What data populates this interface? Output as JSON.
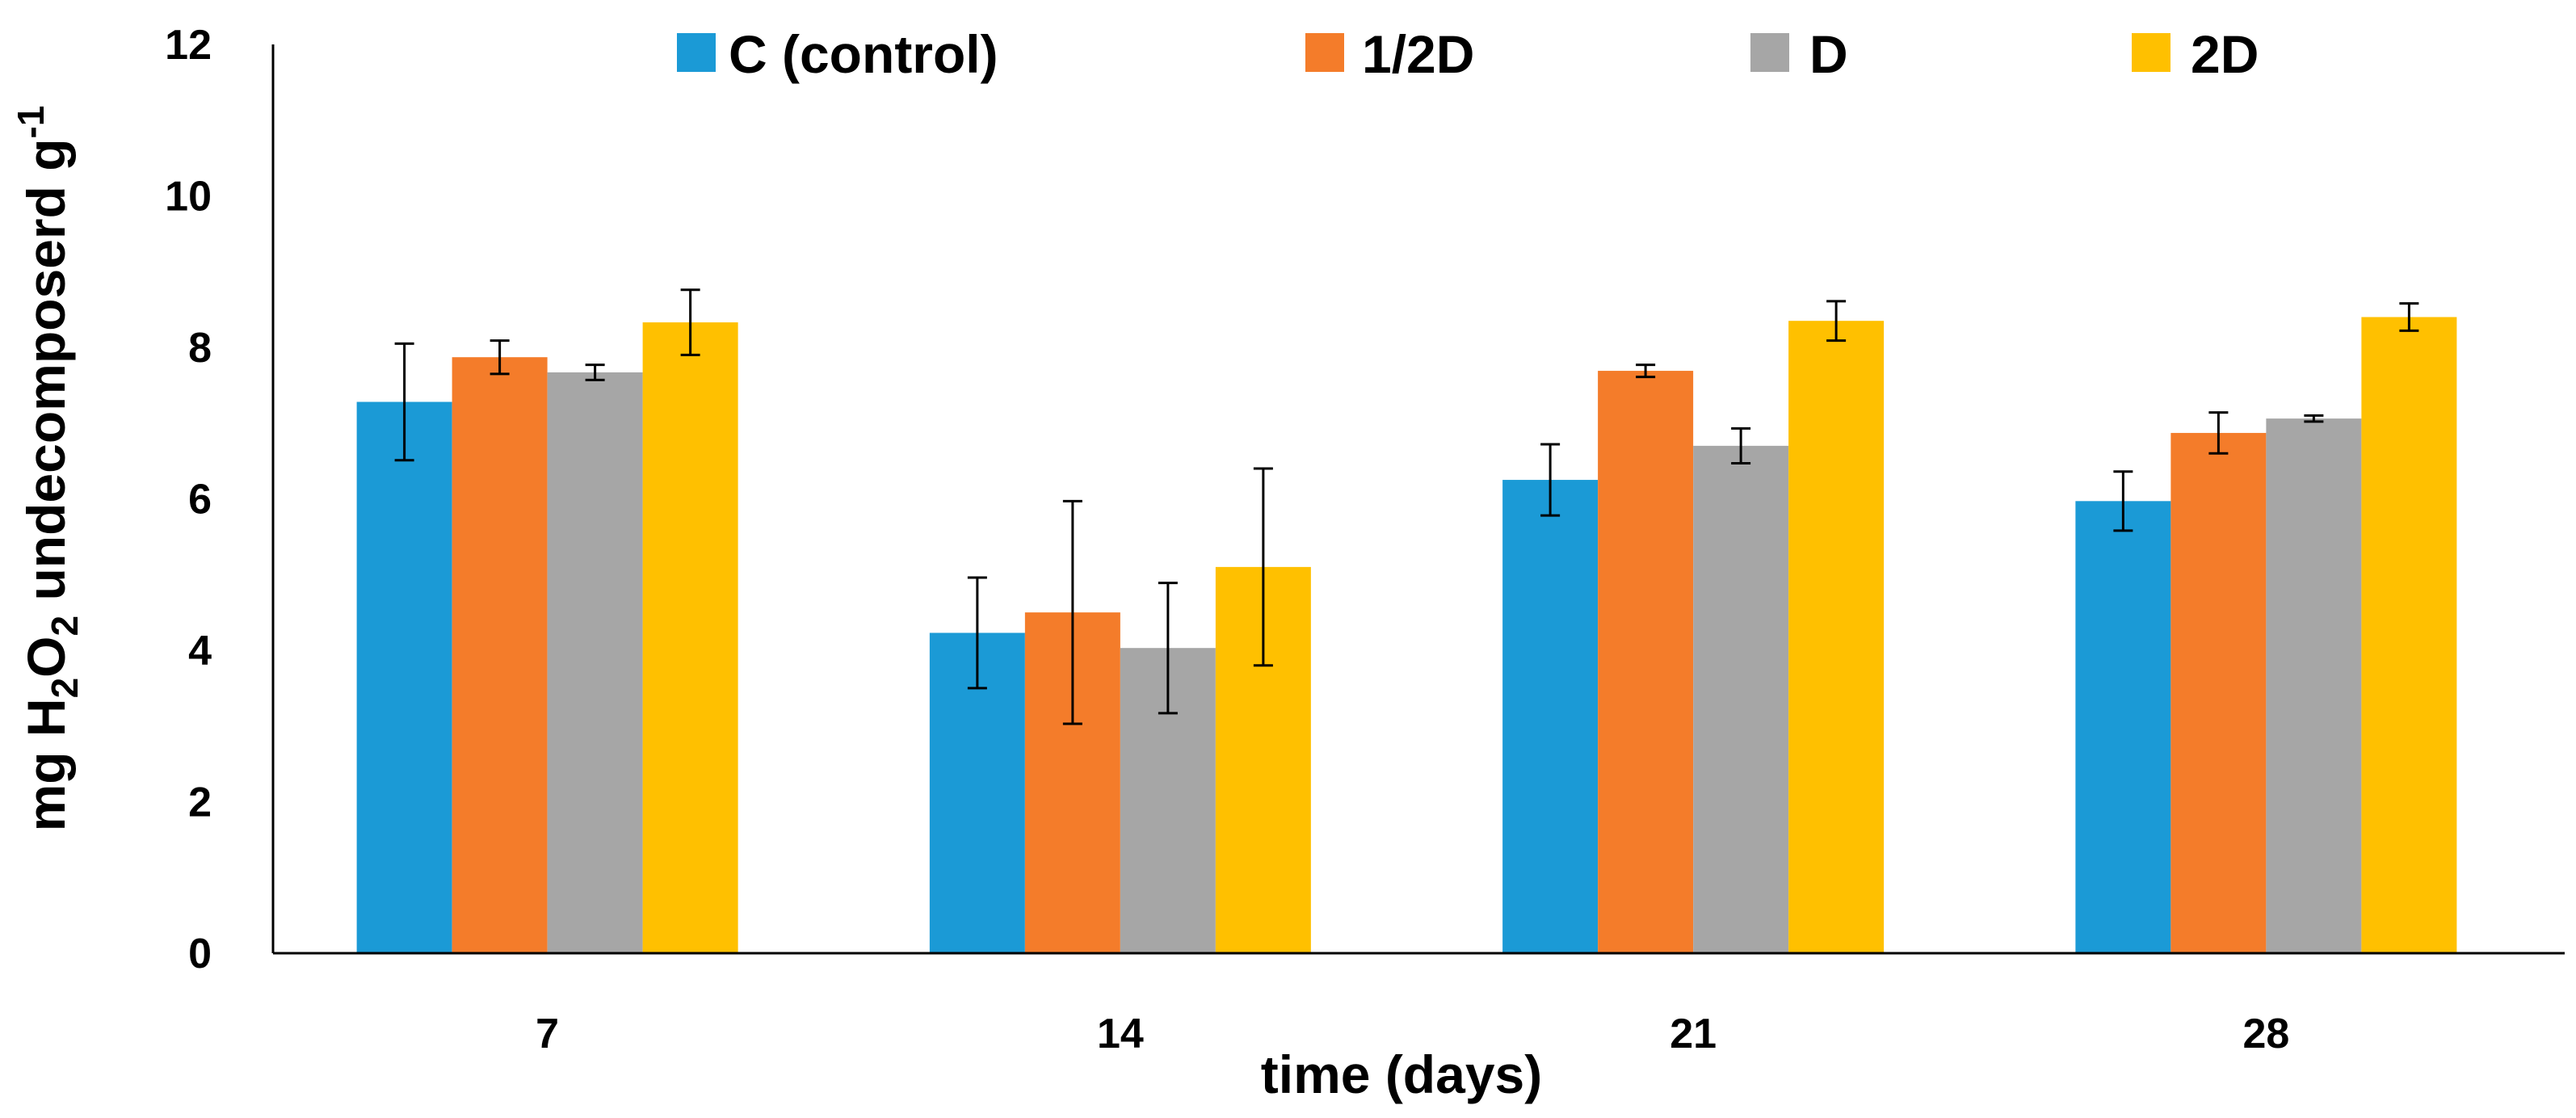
{
  "chart_data": {
    "type": "bar",
    "title": "",
    "categories": [
      "7",
      "14",
      "21",
      "28"
    ],
    "series": [
      {
        "name": "C (control)",
        "color": "#1B9AD6",
        "values": [
          7.28,
          4.23,
          6.25,
          5.97
        ],
        "errors": [
          0.77,
          0.73,
          0.47,
          0.39
        ]
      },
      {
        "name": "1/2D",
        "color": "#F47C2A",
        "values": [
          7.87,
          4.5,
          7.69,
          6.87
        ],
        "errors": [
          0.22,
          1.47,
          0.08,
          0.27
        ]
      },
      {
        "name": "D",
        "color": "#A6A6A6",
        "values": [
          7.67,
          4.03,
          6.7,
          7.06
        ],
        "errors": [
          0.1,
          0.86,
          0.23,
          0.04
        ]
      },
      {
        "name": "2D",
        "color": "#FFC000",
        "values": [
          8.33,
          5.1,
          8.35,
          8.4
        ],
        "errors": [
          0.43,
          1.3,
          0.26,
          0.18
        ]
      }
    ],
    "xlabel": "time (days)",
    "ylabel": {
      "prefix": "mg H",
      "sub1": "2",
      "mid": "O",
      "sub2": "2",
      "suffix": " undecomposerd g",
      "sup": "-1"
    },
    "ylim": [
      0,
      12
    ],
    "yticks": [
      "0",
      "2",
      "4",
      "6",
      "8",
      "10",
      "12"
    ],
    "grid": false,
    "legend_position": "top"
  }
}
